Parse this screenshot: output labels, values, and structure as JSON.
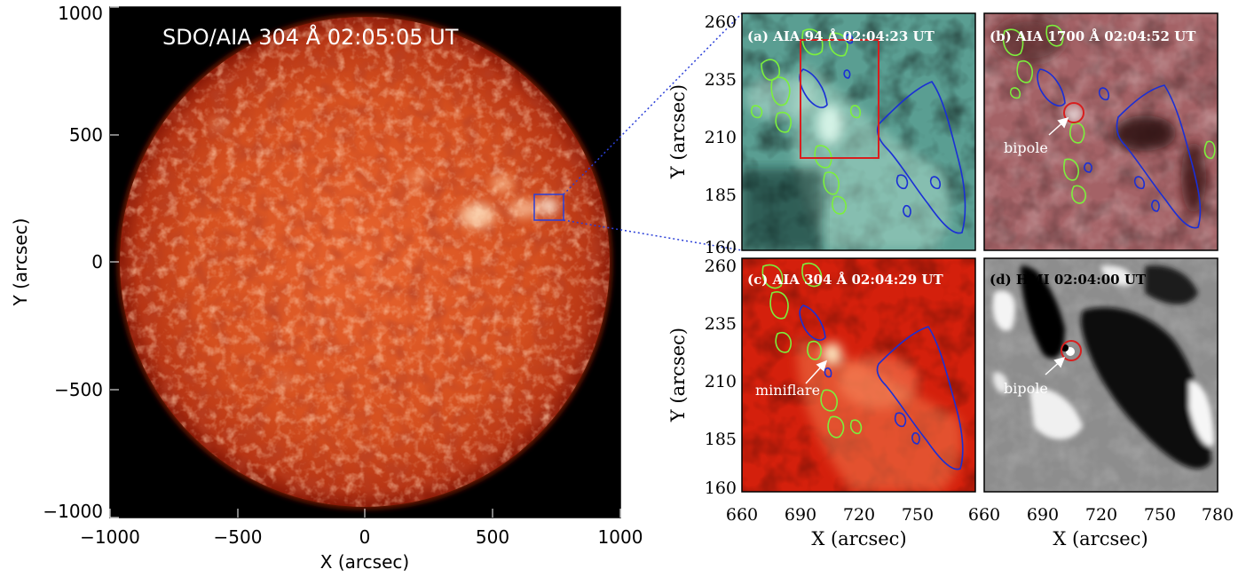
{
  "colors": {
    "sun_core": "#e05a28",
    "sun_limb": "#9a1e0a",
    "aia94": "#5fa89a",
    "aia1700": "#9c5a5e",
    "aia304": "#d6200c",
    "hmi": "#8a8a8a",
    "contour_positive": "#7cf03c",
    "contour_negative": "#1a2fd6",
    "box": "#d81e1e"
  },
  "full_disk": {
    "title": "SDO/AIA 304 Å 02:05:05 UT",
    "x_label": "X (arcsec)",
    "y_label": "Y (arcsec)",
    "x_ticks": [
      "−1000",
      "−500",
      "0",
      "500",
      "1000"
    ],
    "y_ticks": [
      "1000",
      "500",
      "0",
      "−500",
      "−1000"
    ],
    "xlim": [
      -1000,
      1000
    ],
    "ylim": [
      -1000,
      1000
    ]
  },
  "zoom": {
    "x_label": "X (arcsec)",
    "y_label": "Y (arcsec)",
    "x_ticks_left": [
      "660",
      "690",
      "720",
      "750"
    ],
    "x_ticks_right": [
      "660",
      "690",
      "720",
      "750",
      "780"
    ],
    "y_ticks": [
      "260",
      "235",
      "210",
      "185",
      "160"
    ],
    "xlim": [
      660,
      780
    ],
    "ylim": [
      160,
      260
    ],
    "panels": [
      {
        "id": "a",
        "label": "(a) AIA 94 Å 02:04:23 UT"
      },
      {
        "id": "b",
        "label": "(b) AIA 1700 Å 02:04:52 UT",
        "annotation": "bipole"
      },
      {
        "id": "c",
        "label": "(c) AIA 304 Å 02:04:29 UT",
        "annotation": "miniflare"
      },
      {
        "id": "d",
        "label": "(d) HMI 02:04:00 UT",
        "annotation": "bipole"
      }
    ]
  }
}
